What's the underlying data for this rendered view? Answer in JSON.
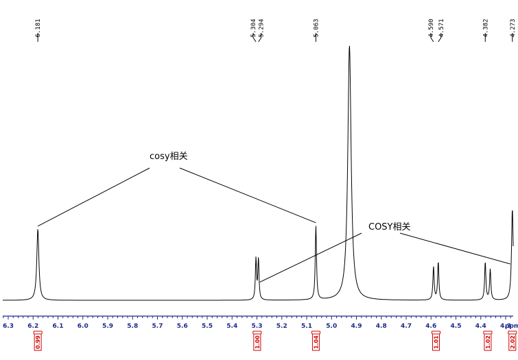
{
  "chart_data": {
    "type": "line",
    "title": "",
    "xlabel": "ppm",
    "ylabel": "",
    "xlim": [
      6.32,
      4.18
    ],
    "x_reversed": true,
    "tick_labels": [
      "6.3",
      "6.2",
      "6.1",
      "6.0",
      "5.9",
      "5.8",
      "5.7",
      "5.6",
      "5.5",
      "5.4",
      "5.3",
      "5.2",
      "5.1",
      "5.0",
      "4.9",
      "4.8",
      "4.7",
      "4.6",
      "4.5",
      "4.4",
      "4.3"
    ],
    "tick_values": [
      6.3,
      6.2,
      6.1,
      6.0,
      5.9,
      5.8,
      5.7,
      5.6,
      5.5,
      5.4,
      5.3,
      5.2,
      5.1,
      5.0,
      4.9,
      4.8,
      4.7,
      4.6,
      4.5,
      4.4,
      4.3
    ],
    "peak_labels": [
      {
        "text": "6.181",
        "ppm": 6.181
      },
      {
        "text": "5.304",
        "ppm": 5.304
      },
      {
        "text": "5.294",
        "ppm": 5.294
      },
      {
        "text": "5.063",
        "ppm": 5.063
      },
      {
        "text": "4.590",
        "ppm": 4.59
      },
      {
        "text": "4.571",
        "ppm": 4.571
      },
      {
        "text": "4.382",
        "ppm": 4.382
      },
      {
        "text": "4.273",
        "ppm": 4.273
      }
    ],
    "peaks": [
      {
        "ppm": 6.181,
        "height": 0.28,
        "width": 0.005
      },
      {
        "ppm": 5.304,
        "height": 0.16,
        "width": 0.0028
      },
      {
        "ppm": 5.294,
        "height": 0.16,
        "width": 0.0028
      },
      {
        "ppm": 5.063,
        "height": 0.29,
        "width": 0.003
      },
      {
        "ppm": 4.928,
        "height": 1.0,
        "width": 0.008
      },
      {
        "ppm": 4.59,
        "height": 0.13,
        "width": 0.003
      },
      {
        "ppm": 4.571,
        "height": 0.15,
        "width": 0.003
      },
      {
        "ppm": 4.382,
        "height": 0.15,
        "width": 0.003
      },
      {
        "ppm": 4.362,
        "height": 0.12,
        "width": 0.003
      },
      {
        "ppm": 4.273,
        "height": 0.36,
        "width": 0.004
      }
    ],
    "integrals": [
      {
        "text": "0.99",
        "ppm": 6.181
      },
      {
        "text": "1.00",
        "ppm": 5.299
      },
      {
        "text": "1.04",
        "ppm": 5.063
      },
      {
        "text": "1.01",
        "ppm": 4.58
      },
      {
        "text": "1.02",
        "ppm": 4.372
      },
      {
        "text": "2.02",
        "ppm": 4.273
      }
    ],
    "annotations": [
      {
        "text": "cosy相关",
        "from_ppm": 6.181,
        "to_ppm": 5.063
      },
      {
        "text": "COSY相关",
        "from_ppm": 5.299,
        "to_ppm": 4.273
      }
    ],
    "grid": false
  },
  "colors": {
    "axis": "#1c2a8a",
    "integral": "#d00000",
    "trace": "#000000"
  }
}
